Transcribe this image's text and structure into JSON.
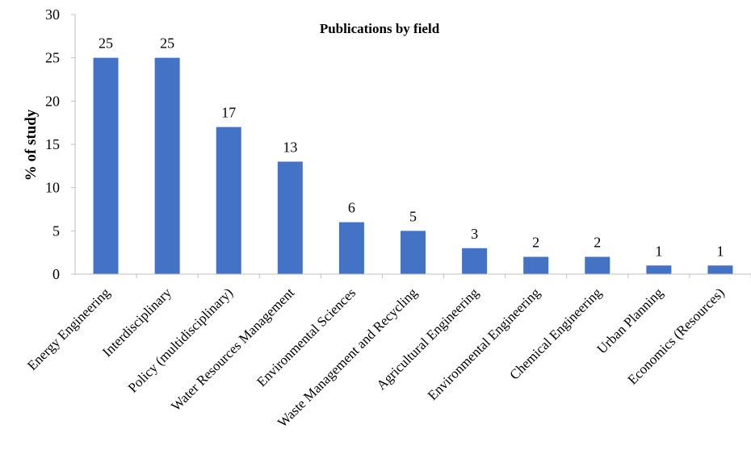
{
  "chart_data": {
    "type": "bar",
    "title": "Publications by field",
    "xlabel": "",
    "ylabel": "% of study",
    "ylim": [
      0,
      30
    ],
    "yticks": [
      0,
      5,
      10,
      15,
      20,
      25,
      30
    ],
    "grid": false,
    "categories": [
      "Energy Engineering",
      "Interdisciplinary",
      "Policy (multidisciplinary)",
      "Water Resources Management",
      "Environmental Sciences",
      "Waste Management and Recycling",
      "Agricultural Engineering",
      "Environmental Engineering",
      "Chemical Engineering",
      "Urban Planning",
      "Economics (Resources)"
    ],
    "values": [
      25,
      25,
      17,
      13,
      6,
      5,
      3,
      2,
      2,
      1,
      1
    ],
    "bar_color": "#4472C4",
    "axis_color": "#BFBFBF"
  }
}
